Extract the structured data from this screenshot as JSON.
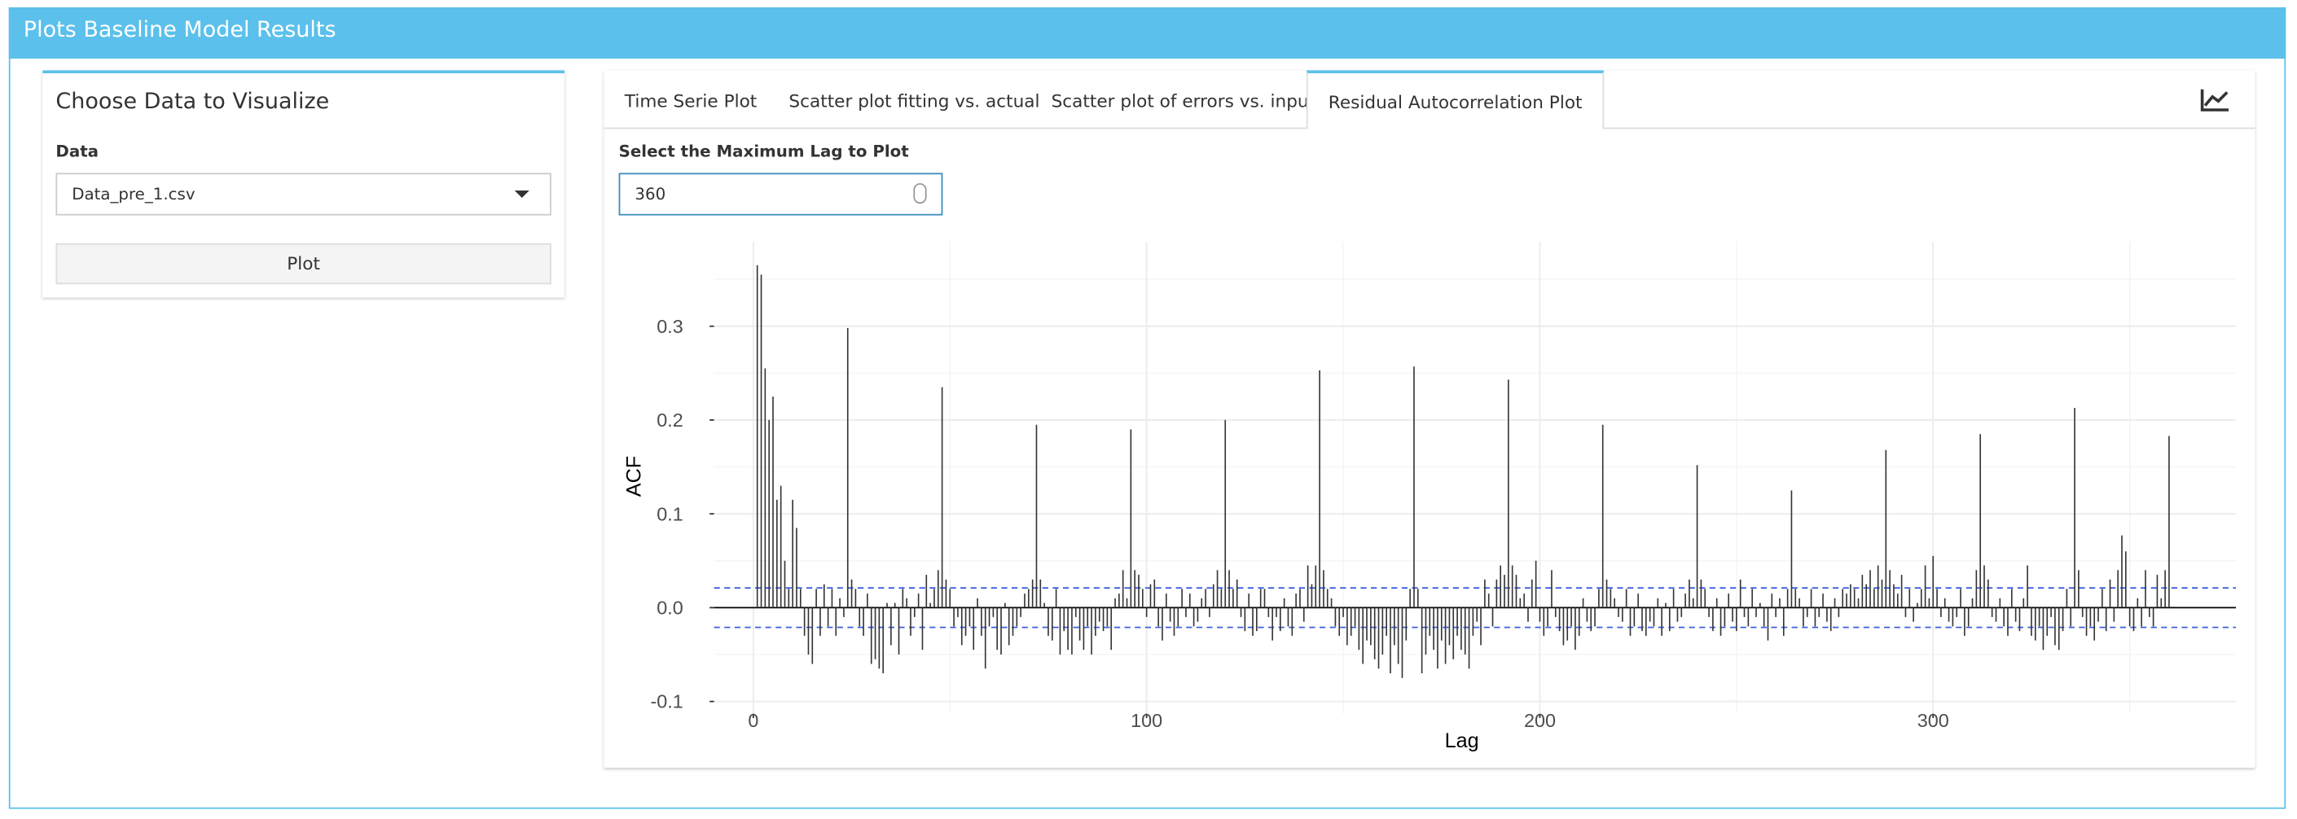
{
  "header": {
    "title": "Plots Baseline Model Results"
  },
  "sidebar": {
    "title": "Choose Data to Visualize",
    "data_label": "Data",
    "data_value": "Data_pre_1.csv",
    "button": "Plot"
  },
  "tabs": [
    "Time Serie Plot",
    "Scatter plot fitting vs. actual",
    "Scatter plot of errors vs. input",
    "Residual Autocorrelation Plot"
  ],
  "active_tab": 3,
  "lag_input": {
    "label": "Select the Maximum Lag to Plot",
    "value": 360
  },
  "chart_data": {
    "type": "acf",
    "xlabel": "Lag",
    "ylabel": "ACF",
    "xlim": [
      -10,
      377
    ],
    "ylim": [
      -0.113,
      0.39
    ],
    "xticks": [
      0,
      100,
      200,
      300
    ],
    "yticks": [
      -0.1,
      {
        "value": 0,
        "label": "0.0"
      },
      0.1,
      0.2,
      0.3
    ],
    "grid": true,
    "color": "#333333",
    "conf_bounds": [
      -0.021,
      0.021
    ],
    "conf_color": "#3b5fe0",
    "x": [
      1,
      2,
      3,
      4,
      5,
      6,
      7,
      8,
      9,
      10,
      11,
      12,
      13,
      14,
      15,
      16,
      17,
      18,
      19,
      20,
      21,
      22,
      23,
      24,
      25,
      26,
      27,
      28,
      29,
      30,
      31,
      32,
      33,
      34,
      35,
      36,
      37,
      38,
      39,
      40,
      41,
      42,
      43,
      44,
      45,
      46,
      47,
      48,
      49,
      50,
      51,
      52,
      53,
      54,
      55,
      56,
      57,
      58,
      59,
      60,
      61,
      62,
      63,
      64,
      65,
      66,
      67,
      68,
      69,
      70,
      71,
      72,
      73,
      74,
      75,
      76,
      77,
      78,
      79,
      80,
      81,
      82,
      83,
      84,
      85,
      86,
      87,
      88,
      89,
      90,
      91,
      92,
      93,
      94,
      95,
      96,
      97,
      98,
      99,
      100,
      101,
      102,
      103,
      104,
      105,
      106,
      107,
      108,
      109,
      110,
      111,
      112,
      113,
      114,
      115,
      116,
      117,
      118,
      119,
      120,
      121,
      122,
      123,
      124,
      125,
      126,
      127,
      128,
      129,
      130,
      131,
      132,
      133,
      134,
      135,
      136,
      137,
      138,
      139,
      140,
      141,
      142,
      143,
      144,
      145,
      146,
      147,
      148,
      149,
      150,
      151,
      152,
      153,
      154,
      155,
      156,
      157,
      158,
      159,
      160,
      161,
      162,
      163,
      164,
      165,
      166,
      167,
      168,
      169,
      170,
      171,
      172,
      173,
      174,
      175,
      176,
      177,
      178,
      179,
      180,
      181,
      182,
      183,
      184,
      185,
      186,
      187,
      188,
      189,
      190,
      191,
      192,
      193,
      194,
      195,
      196,
      197,
      198,
      199,
      200,
      201,
      202,
      203,
      204,
      205,
      206,
      207,
      208,
      209,
      210,
      211,
      212,
      213,
      214,
      215,
      216,
      217,
      218,
      219,
      220,
      221,
      222,
      223,
      224,
      225,
      226,
      227,
      228,
      229,
      230,
      231,
      232,
      233,
      234,
      235,
      236,
      237,
      238,
      239,
      240,
      241,
      242,
      243,
      244,
      245,
      246,
      247,
      248,
      249,
      250,
      251,
      252,
      253,
      254,
      255,
      256,
      257,
      258,
      259,
      260,
      261,
      262,
      263,
      264,
      265,
      266,
      267,
      268,
      269,
      270,
      271,
      272,
      273,
      274,
      275,
      276,
      277,
      278,
      279,
      280,
      281,
      282,
      283,
      284,
      285,
      286,
      287,
      288,
      289,
      290,
      291,
      292,
      293,
      294,
      295,
      296,
      297,
      298,
      299,
      300,
      301,
      302,
      303,
      304,
      305,
      306,
      307,
      308,
      309,
      310,
      311,
      312,
      313,
      314,
      315,
      316,
      317,
      318,
      319,
      320,
      321,
      322,
      323,
      324,
      325,
      326,
      327,
      328,
      329,
      330,
      331,
      332,
      333,
      334,
      335,
      336,
      337,
      338,
      339,
      340,
      341,
      342,
      343,
      344,
      345,
      346,
      347,
      348,
      349,
      350,
      351,
      352,
      353,
      354,
      355,
      356,
      357,
      358,
      359,
      360
    ],
    "values": [
      0.365,
      0.355,
      0.255,
      0.2,
      0.225,
      0.115,
      0.13,
      0.05,
      0.02,
      0.115,
      0.085,
      0.02,
      -0.03,
      -0.05,
      -0.06,
      0.02,
      -0.03,
      0.025,
      -0.02,
      0.02,
      -0.03,
      0.01,
      -0.01,
      0.298,
      0.03,
      0.02,
      -0.02,
      -0.03,
      0.015,
      -0.06,
      -0.055,
      -0.065,
      -0.07,
      0.005,
      -0.04,
      0.005,
      -0.05,
      0.02,
      0.01,
      -0.03,
      -0.01,
      0.015,
      -0.045,
      0.035,
      0.005,
      0.02,
      0.04,
      0.235,
      0.03,
      0.02,
      -0.02,
      -0.01,
      -0.04,
      -0.03,
      -0.02,
      -0.045,
      0.01,
      -0.03,
      -0.065,
      -0.02,
      -0.01,
      -0.045,
      -0.05,
      0.005,
      -0.04,
      -0.03,
      -0.02,
      -0.01,
      0.015,
      0.02,
      0.03,
      0.195,
      0.03,
      0.005,
      -0.03,
      -0.035,
      0.02,
      -0.05,
      -0.025,
      -0.045,
      -0.05,
      -0.01,
      -0.035,
      -0.045,
      -0.02,
      -0.05,
      -0.03,
      -0.015,
      -0.025,
      -0.02,
      -0.045,
      0.01,
      0.015,
      0.04,
      0.01,
      0.19,
      0.04,
      0.035,
      0.02,
      -0.01,
      0.025,
      0.03,
      -0.02,
      -0.035,
      0.015,
      -0.015,
      -0.03,
      -0.02,
      0.02,
      -0.01,
      0.015,
      -0.02,
      -0.015,
      0.01,
      0.02,
      -0.01,
      0.025,
      0.04,
      0.02,
      0.2,
      0.04,
      0.02,
      0.03,
      -0.01,
      -0.025,
      0.015,
      -0.03,
      -0.025,
      0.02,
      0.02,
      -0.01,
      -0.035,
      -0.01,
      -0.025,
      0.01,
      -0.02,
      -0.03,
      0.015,
      0.02,
      -0.015,
      0.045,
      0.025,
      0.045,
      0.253,
      0.04,
      0.02,
      0.01,
      -0.02,
      -0.03,
      -0.01,
      -0.04,
      -0.03,
      -0.02,
      -0.045,
      -0.06,
      -0.035,
      -0.04,
      -0.055,
      -0.065,
      -0.05,
      -0.03,
      -0.07,
      -0.04,
      -0.06,
      -0.075,
      -0.035,
      0.02,
      0.257,
      0.02,
      -0.07,
      -0.05,
      -0.03,
      -0.045,
      -0.065,
      -0.035,
      -0.06,
      -0.04,
      -0.055,
      -0.03,
      -0.045,
      -0.05,
      -0.065,
      -0.03,
      -0.015,
      -0.04,
      0.03,
      0.015,
      -0.02,
      0.03,
      0.045,
      0.035,
      0.243,
      0.045,
      0.035,
      0.01,
      0.015,
      -0.015,
      0.03,
      0.05,
      -0.015,
      -0.03,
      -0.02,
      0.04,
      -0.01,
      -0.025,
      -0.04,
      -0.035,
      -0.02,
      -0.045,
      -0.03,
      0.01,
      -0.015,
      -0.025,
      -0.02,
      0.02,
      0.195,
      0.03,
      0.02,
      0.01,
      -0.01,
      -0.015,
      0.02,
      -0.03,
      -0.02,
      0.015,
      -0.025,
      -0.03,
      -0.015,
      -0.02,
      0.01,
      -0.03,
      0.005,
      -0.025,
      0.02,
      -0.015,
      -0.01,
      0.015,
      0.03,
      0.01,
      0.152,
      0.03,
      0.02,
      -0.01,
      -0.025,
      0.01,
      -0.03,
      -0.02,
      0.015,
      -0.015,
      -0.025,
      0.03,
      -0.01,
      -0.02,
      0.02,
      -0.01,
      0.005,
      -0.02,
      -0.035,
      0.015,
      -0.01,
      0.01,
      -0.03,
      0.02,
      0.125,
      0.02,
      0.01,
      -0.02,
      -0.01,
      0.02,
      -0.02,
      -0.01,
      0.015,
      -0.015,
      -0.025,
      0.01,
      -0.01,
      0.02,
      0.015,
      0.025,
      0.02,
      0.01,
      0.035,
      0.025,
      0.04,
      0.02,
      0.045,
      0.03,
      0.168,
      0.04,
      0.025,
      0.015,
      0.035,
      -0.01,
      0.02,
      -0.015,
      0.005,
      0.02,
      0.045,
      0.01,
      0.055,
      0.02,
      -0.01,
      0.01,
      -0.015,
      -0.02,
      -0.01,
      0.02,
      -0.03,
      -0.02,
      0.01,
      0.04,
      0.185,
      0.045,
      0.03,
      -0.01,
      -0.015,
      0.01,
      -0.02,
      -0.03,
      0.02,
      -0.015,
      -0.025,
      0.01,
      0.045,
      -0.03,
      -0.035,
      -0.02,
      -0.045,
      -0.03,
      -0.01,
      -0.04,
      -0.045,
      -0.025,
      0.02,
      -0.02,
      0.213,
      0.04,
      -0.01,
      -0.03,
      -0.02,
      -0.035,
      -0.015,
      0.02,
      -0.025,
      0.03,
      -0.015,
      0.04,
      0.077,
      0.06,
      -0.02,
      -0.025,
      0.01,
      -0.02,
      0.04,
      -0.01,
      -0.02,
      0.035,
      0.01,
      0.04,
      0.183
    ]
  }
}
